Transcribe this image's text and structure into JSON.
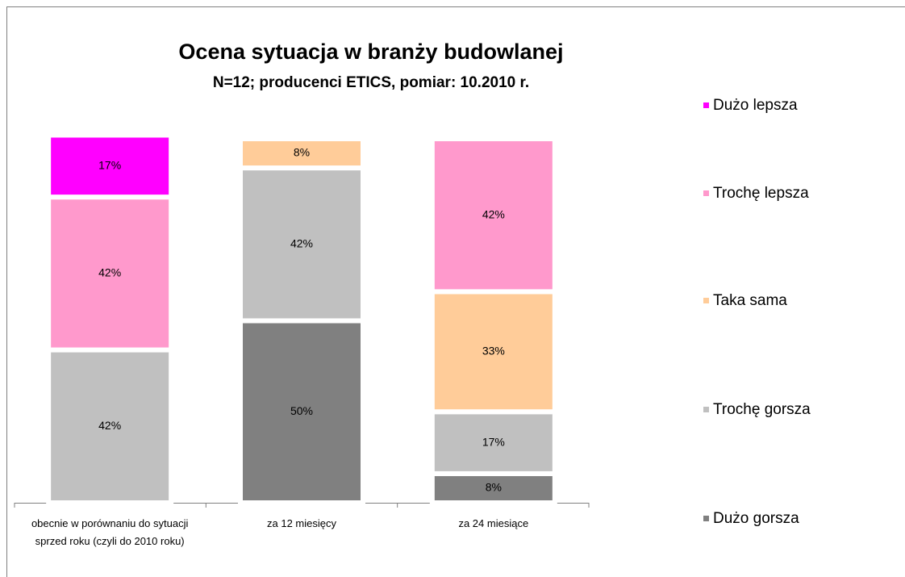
{
  "chart_data": {
    "type": "stacked_bar",
    "title": "Ocena sytuacja w branży budowlanej",
    "subtitle": "N=12; producenci ETICS, pomiar: 10.2010 r.",
    "categories": [
      "obecnie w porównaniu do sytuacji sprzed roku (czyli do 2010 roku)",
      "za 12 miesięcy",
      "za 24 miesiące"
    ],
    "series": [
      {
        "name": "Dużo gorsza",
        "color": "#808080",
        "values": [
          null,
          50,
          8
        ],
        "value_labels": [
          null,
          "50%",
          "8%"
        ]
      },
      {
        "name": "Trochę gorsza",
        "color": "#c0c0c0",
        "values": [
          42,
          42,
          17
        ],
        "value_labels": [
          "42%",
          "42%",
          "17%"
        ]
      },
      {
        "name": "Taka sama",
        "color": "#ffcc99",
        "values": [
          null,
          8,
          33
        ],
        "value_labels": [
          null,
          "8%",
          "33%"
        ]
      },
      {
        "name": "Trochę lepsza",
        "color": "#ff99cc",
        "values": [
          42,
          null,
          42
        ],
        "value_labels": [
          "42%",
          null,
          "42%"
        ]
      },
      {
        "name": "Dużo lepsza",
        "color": "#ff00ff",
        "values": [
          17,
          null,
          null
        ],
        "value_labels": [
          "17%",
          null,
          null
        ]
      }
    ],
    "ylim": [
      0,
      100
    ]
  }
}
